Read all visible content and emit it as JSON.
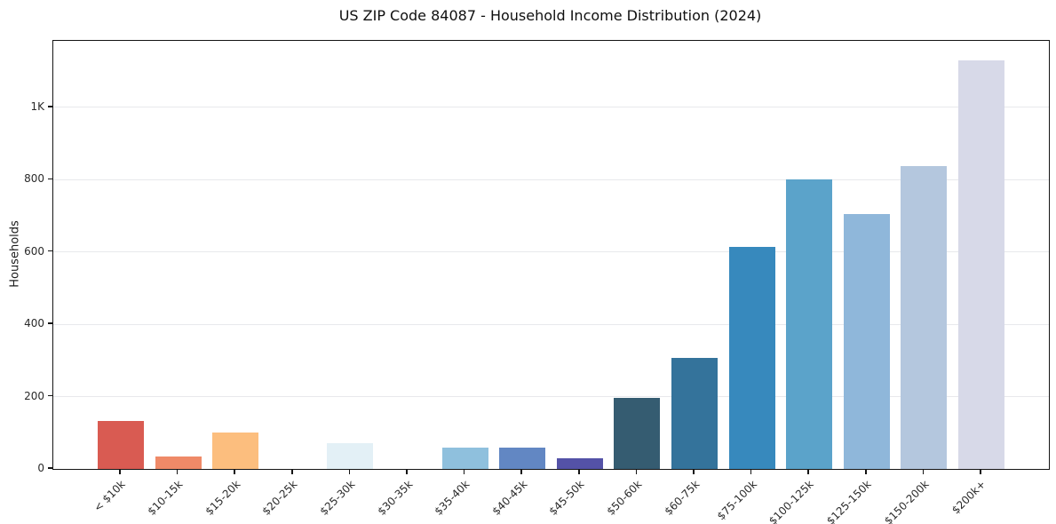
{
  "figure": {
    "background": "#ffffff"
  },
  "chart_data": {
    "type": "bar",
    "title": "US ZIP Code 84087 - Household Income Distribution (2024)",
    "xlabel": "",
    "ylabel": "Households",
    "categories": [
      "< $10k",
      "$10-15k",
      "$15-20k",
      "$20-25k",
      "$25-30k",
      "$30-35k",
      "$35-40k",
      "$40-45k",
      "$45-50k",
      "$50-60k",
      "$60-75k",
      "$75-100k",
      "$100-125k",
      "$125-150k",
      "$150-200k",
      "$200k+"
    ],
    "values": [
      133,
      34,
      100,
      0,
      72,
      0,
      58,
      58,
      30,
      197,
      307,
      615,
      800,
      705,
      837,
      1129
    ],
    "bar_colors": [
      "#d95b52",
      "#ef8a68",
      "#fcbe7e",
      "#fee99d",
      "#e3f0f6",
      "#d5e9f1",
      "#8fc0dd",
      "#6287c3",
      "#5452a7",
      "#355c71",
      "#34739b",
      "#3789bd",
      "#5ba3ca",
      "#8fb7da",
      "#b4c7de",
      "#d7d9e8"
    ],
    "ylim": [
      0,
      1184
    ],
    "yticks": [
      {
        "value": 0,
        "label": "0"
      },
      {
        "value": 200,
        "label": "200"
      },
      {
        "value": 400,
        "label": "400"
      },
      {
        "value": 600,
        "label": "600"
      },
      {
        "value": 800,
        "label": "800"
      },
      {
        "value": 1000,
        "label": "1K"
      }
    ],
    "gridline_values": [
      200,
      400,
      600,
      800,
      1000
    ],
    "grid": "horizontal",
    "legend": "none",
    "xtick_rotation_deg": 45,
    "axis_color": "#141414",
    "gridline_color": "#e8e9ec"
  }
}
